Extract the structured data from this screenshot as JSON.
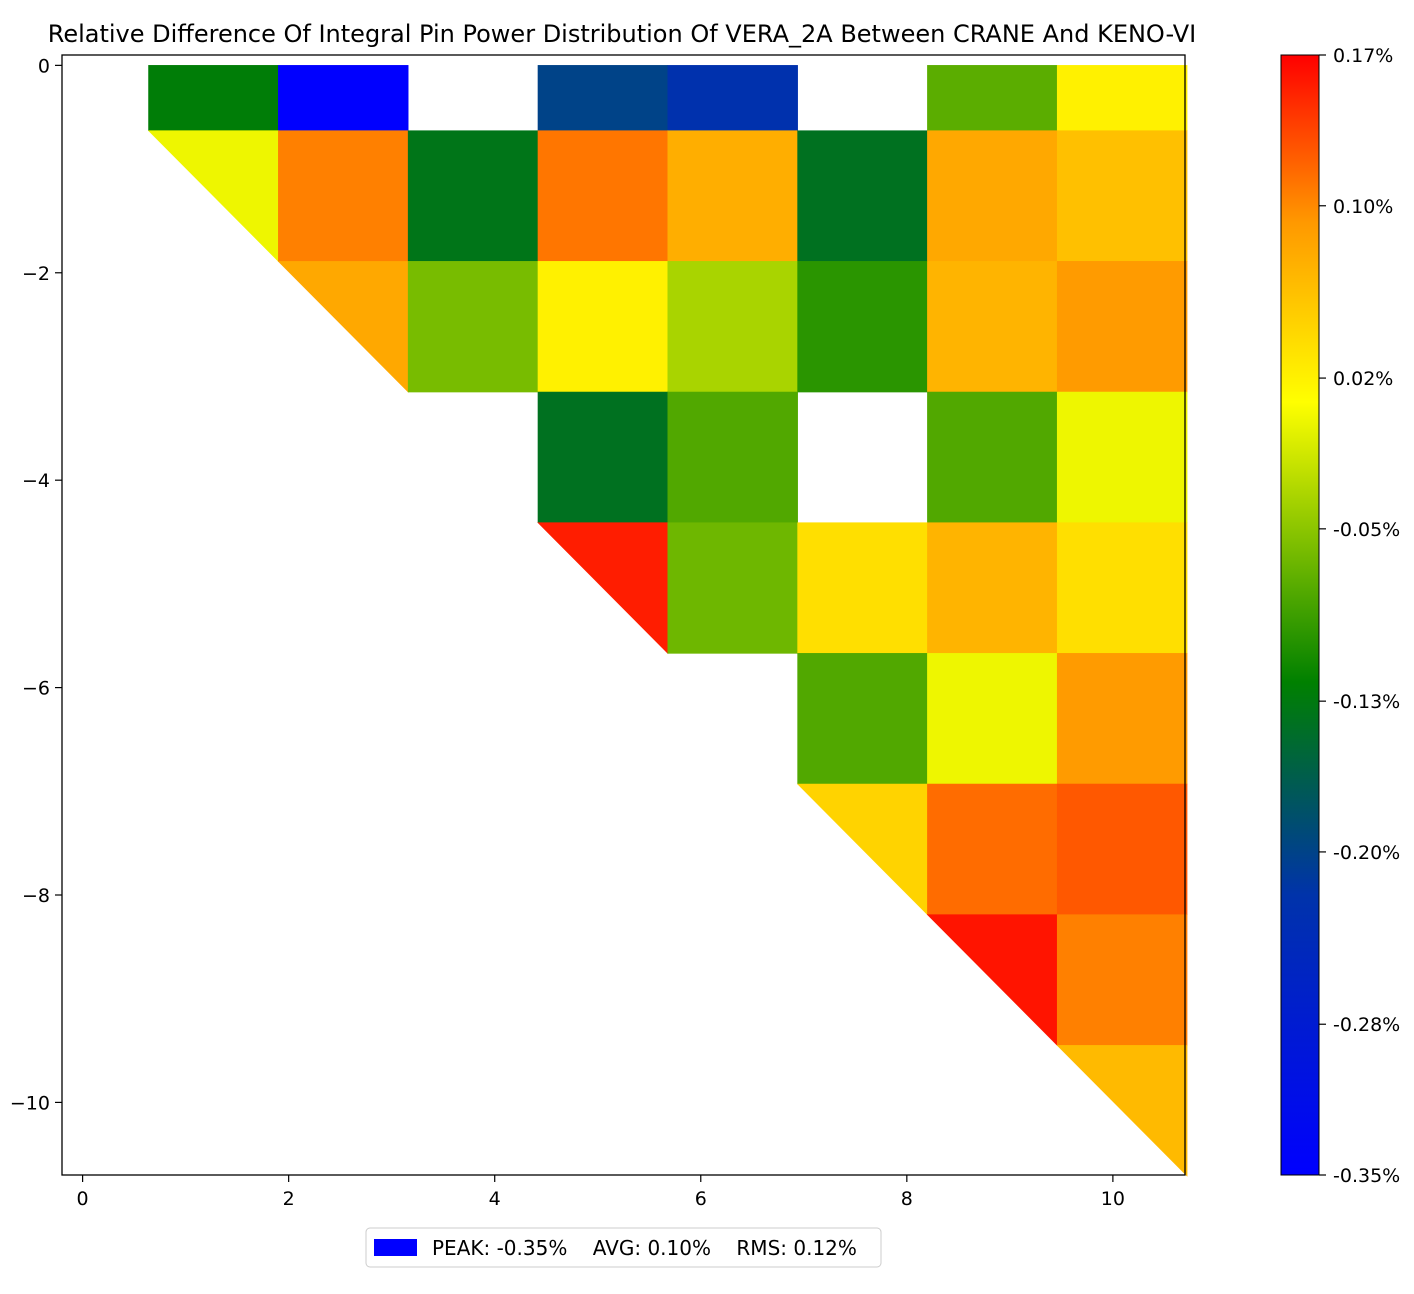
{
  "chart_data": {
    "type": "heatmap",
    "title": "Relative Difference Of Integral Pin Power Distribution Of VERA_2A Between CRANE And KENO-VI",
    "xlabel": "",
    "ylabel": "",
    "xlim": [
      -0.2,
      10.7
    ],
    "ylim": [
      -10.7,
      0.1
    ],
    "x_ticks": [
      0,
      2,
      4,
      6,
      8,
      10
    ],
    "x_tick_labels": [
      "0",
      "2",
      "4",
      "6",
      "8",
      "10"
    ],
    "y_ticks": [
      0,
      -2,
      -4,
      -6,
      -8,
      -10
    ],
    "y_tick_labels": [
      "0",
      "−2",
      "−4",
      "−6",
      "−8",
      "−10"
    ],
    "cell_size": 1.26,
    "grid_origin": [
      0.64,
      0.0
    ],
    "value_unit": "%",
    "cells": [
      {
        "row": 0,
        "col": 0,
        "value": -0.125,
        "shape": "rect"
      },
      {
        "row": 0,
        "col": 1,
        "value": -0.35,
        "shape": "rect"
      },
      {
        "row": 0,
        "col": 3,
        "value": -0.2,
        "shape": "rect"
      },
      {
        "row": 0,
        "col": 4,
        "value": -0.225,
        "shape": "rect"
      },
      {
        "row": 0,
        "col": 6,
        "value": -0.075,
        "shape": "rect"
      },
      {
        "row": 0,
        "col": 7,
        "value": 0.02,
        "shape": "rect"
      },
      {
        "row": 1,
        "col": 0,
        "value": 0.0,
        "shape": "tri"
      },
      {
        "row": 1,
        "col": 1,
        "value": 0.105,
        "shape": "rect"
      },
      {
        "row": 1,
        "col": 2,
        "value": -0.135,
        "shape": "rect"
      },
      {
        "row": 1,
        "col": 3,
        "value": 0.11,
        "shape": "rect"
      },
      {
        "row": 1,
        "col": 4,
        "value": 0.075,
        "shape": "rect"
      },
      {
        "row": 1,
        "col": 5,
        "value": -0.14,
        "shape": "rect"
      },
      {
        "row": 1,
        "col": 6,
        "value": 0.08,
        "shape": "rect"
      },
      {
        "row": 1,
        "col": 7,
        "value": 0.06,
        "shape": "rect"
      },
      {
        "row": 2,
        "col": 1,
        "value": 0.08,
        "shape": "tri"
      },
      {
        "row": 2,
        "col": 2,
        "value": -0.06,
        "shape": "rect"
      },
      {
        "row": 2,
        "col": 3,
        "value": 0.02,
        "shape": "rect"
      },
      {
        "row": 2,
        "col": 4,
        "value": -0.035,
        "shape": "rect"
      },
      {
        "row": 2,
        "col": 5,
        "value": -0.1,
        "shape": "rect"
      },
      {
        "row": 2,
        "col": 6,
        "value": 0.07,
        "shape": "rect"
      },
      {
        "row": 2,
        "col": 7,
        "value": 0.09,
        "shape": "rect"
      },
      {
        "row": 3,
        "col": 3,
        "value": -0.14,
        "shape": "rect"
      },
      {
        "row": 3,
        "col": 4,
        "value": -0.08,
        "shape": "rect"
      },
      {
        "row": 3,
        "col": 6,
        "value": -0.08,
        "shape": "rect"
      },
      {
        "row": 3,
        "col": 7,
        "value": 0.0,
        "shape": "rect"
      },
      {
        "row": 4,
        "col": 3,
        "value": 0.155,
        "shape": "tri"
      },
      {
        "row": 4,
        "col": 4,
        "value": -0.065,
        "shape": "rect"
      },
      {
        "row": 4,
        "col": 5,
        "value": 0.035,
        "shape": "rect"
      },
      {
        "row": 4,
        "col": 6,
        "value": 0.07,
        "shape": "rect"
      },
      {
        "row": 4,
        "col": 7,
        "value": 0.035,
        "shape": "rect"
      },
      {
        "row": 5,
        "col": 5,
        "value": -0.08,
        "shape": "rect"
      },
      {
        "row": 5,
        "col": 6,
        "value": 0.0,
        "shape": "rect"
      },
      {
        "row": 5,
        "col": 7,
        "value": 0.09,
        "shape": "rect"
      },
      {
        "row": 6,
        "col": 5,
        "value": 0.045,
        "shape": "tri"
      },
      {
        "row": 6,
        "col": 6,
        "value": 0.115,
        "shape": "rect"
      },
      {
        "row": 6,
        "col": 7,
        "value": 0.125,
        "shape": "rect"
      },
      {
        "row": 7,
        "col": 6,
        "value": 0.16,
        "shape": "tri"
      },
      {
        "row": 7,
        "col": 7,
        "value": 0.105,
        "shape": "rect"
      },
      {
        "row": 8,
        "col": 7,
        "value": 0.065,
        "shape": "tri"
      }
    ],
    "colorbar": {
      "min": -0.35,
      "max": 0.17,
      "ticks": [
        0.17,
        0.1,
        0.02,
        -0.05,
        -0.13,
        -0.2,
        -0.28,
        -0.35
      ],
      "tick_labels": [
        "0.17%",
        "0.10%",
        "0.02%",
        "-0.05%",
        "-0.13%",
        "-0.20%",
        "-0.28%",
        "-0.35%"
      ],
      "stops": [
        {
          "pos": 0.0,
          "color": "#0000ff"
        },
        {
          "pos": 0.25,
          "color": "#0033aa"
        },
        {
          "pos": 0.44,
          "color": "#008000"
        },
        {
          "pos": 0.69,
          "color": "#ffff00"
        },
        {
          "pos": 0.85,
          "color": "#ff9900"
        },
        {
          "pos": 1.0,
          "color": "#ff0000"
        }
      ]
    },
    "legend": {
      "placement": "bottom-center",
      "swatch_color": "#0000ff",
      "label": "PEAK: -0.35%    AVG: 0.10%    RMS: 0.12%"
    }
  }
}
